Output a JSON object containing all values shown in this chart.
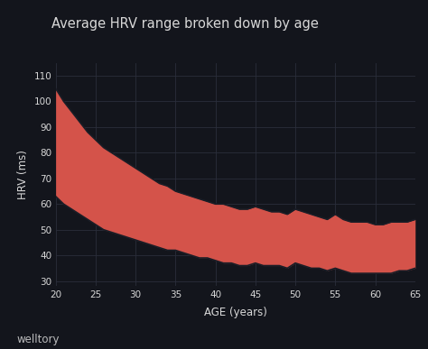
{
  "title": "Average HRV range broken down by age",
  "xlabel": "AGE (years)",
  "ylabel": "HRV (ms)",
  "watermark": "welltory",
  "bg_color": "#13151c",
  "grid_color": "#2a2e3a",
  "text_color": "#d8d8d8",
  "fill_color": "#d4534a",
  "fill_alpha": 1.0,
  "age": [
    20,
    21,
    22,
    23,
    24,
    25,
    26,
    27,
    28,
    29,
    30,
    31,
    32,
    33,
    34,
    35,
    36,
    37,
    38,
    39,
    40,
    41,
    42,
    43,
    44,
    45,
    46,
    47,
    48,
    49,
    50,
    51,
    52,
    53,
    54,
    55,
    56,
    57,
    58,
    59,
    60,
    61,
    62,
    63,
    64,
    65
  ],
  "upper": [
    105,
    100,
    96,
    92,
    88,
    85,
    82,
    80,
    78,
    76,
    74,
    72,
    70,
    68,
    67,
    65,
    64,
    63,
    62,
    61,
    60,
    60,
    59,
    58,
    58,
    59,
    58,
    57,
    57,
    56,
    58,
    57,
    56,
    55,
    54,
    56,
    54,
    53,
    53,
    53,
    52,
    52,
    53,
    53,
    53,
    54
  ],
  "lower": [
    63,
    60,
    58,
    56,
    54,
    52,
    50,
    49,
    48,
    47,
    46,
    45,
    44,
    43,
    42,
    42,
    41,
    40,
    39,
    39,
    38,
    37,
    37,
    36,
    36,
    37,
    36,
    36,
    36,
    35,
    37,
    36,
    35,
    35,
    34,
    35,
    34,
    33,
    33,
    33,
    33,
    33,
    33,
    34,
    34,
    35
  ],
  "ylim": [
    28,
    115
  ],
  "yticks": [
    30,
    40,
    50,
    60,
    70,
    80,
    90,
    100,
    110
  ],
  "xlim": [
    20,
    65
  ],
  "xticks": [
    20,
    25,
    30,
    35,
    40,
    45,
    50,
    55,
    60,
    65
  ]
}
